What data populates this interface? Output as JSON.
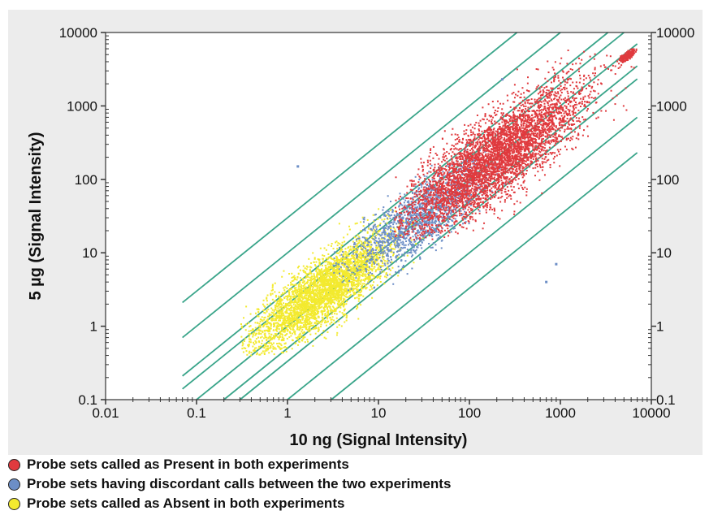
{
  "chart_data": {
    "type": "scatter",
    "title": "",
    "xlabel": "10 ng (Signal Intensity)",
    "ylabel": "5 µg (Signal Intensity)",
    "x_scale": "log",
    "y_scale": "log",
    "xlim": [
      0.01,
      10000
    ],
    "ylim": [
      0.1,
      10000
    ],
    "x_ticks": [
      "0.01",
      "0.1",
      "1",
      "10",
      "100",
      "1000",
      "10000"
    ],
    "y_ticks": [
      "0.1",
      "1",
      "10",
      "100",
      "1000",
      "10000"
    ],
    "grid": false,
    "legend_placement": "bottom",
    "background_color": "#ececec",
    "guide_lines": {
      "color": "#3aa58a",
      "slope": 1,
      "fold_changes": [
        30,
        10,
        3,
        2,
        1,
        0.5,
        0.333,
        0.1,
        0.033
      ]
    },
    "series": [
      {
        "name": "Probe sets called as Present in both experiments",
        "color": "#e03a3e",
        "clusters": [
          {
            "x_range": [
              15,
              7000
            ],
            "y_range": [
              15,
              6000
            ],
            "center": [
              200,
              200
            ],
            "approx_points": 4500
          },
          {
            "x_range": [
              4000,
              7000
            ],
            "y_range": [
              3000,
              6000
            ],
            "center": [
              5500,
              4800
            ],
            "approx_points": 200
          }
        ]
      },
      {
        "name": "Probe sets having discordant calls between the two experiments",
        "color": "#6c8ec6",
        "clusters": [
          {
            "x_range": [
              3,
              300
            ],
            "y_range": [
              3,
              300
            ],
            "center": [
              30,
              30
            ],
            "approx_points": 1500
          }
        ],
        "outliers": [
          [
            1.3,
            150
          ],
          [
            700,
            4
          ],
          [
            900,
            7
          ],
          [
            230,
            2300
          ],
          [
            60,
            120
          ]
        ]
      },
      {
        "name": "Probe sets called as Absent in both experiments",
        "color": "#f3ea2f",
        "clusters": [
          {
            "x_range": [
              0.3,
              40
            ],
            "y_range": [
              0.4,
              40
            ],
            "center": [
              2.5,
              3
            ],
            "approx_points": 3500
          }
        ]
      }
    ]
  }
}
